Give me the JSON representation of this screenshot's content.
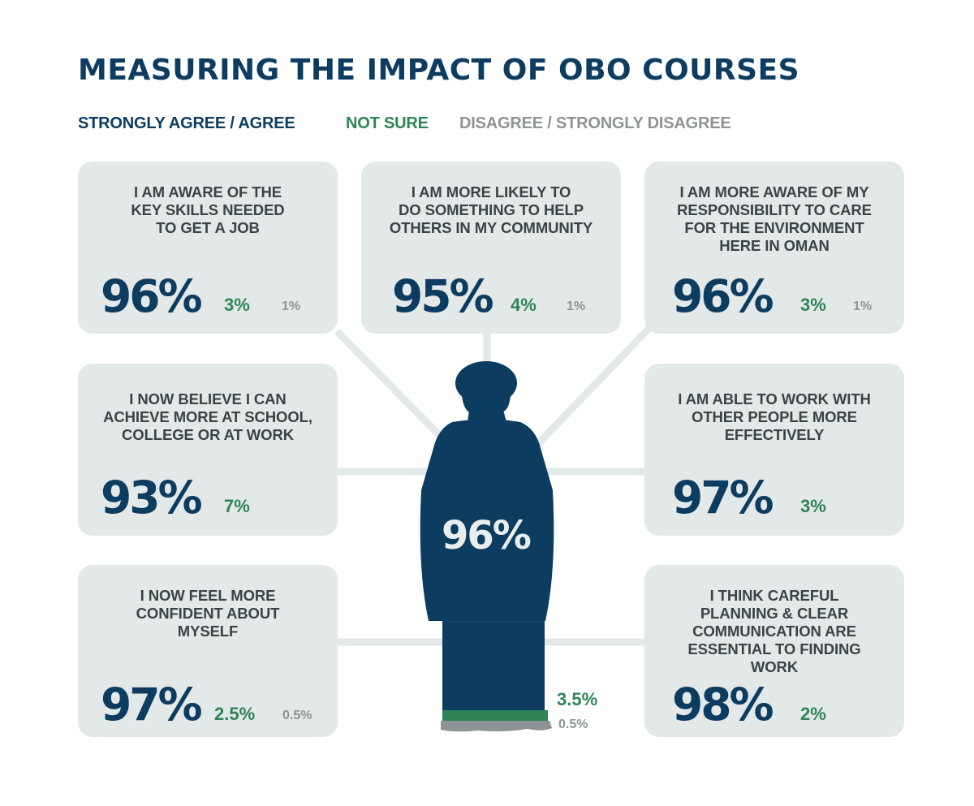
{
  "title": "MEASURING THE IMPACT OF OBO COURSES",
  "legend": {
    "agree": "STRONGLY AGREE / AGREE",
    "not_sure": "NOT SURE",
    "disagree": "DISAGREE / STRONGLY DISAGREE"
  },
  "colors": {
    "agree": "#0d3c61",
    "not_sure": "#2e8457",
    "disagree": "#8e9396",
    "card_background": "#e3e8e8"
  },
  "cards": [
    {
      "statement": "I AM AWARE OF THE\nKEY SKILLS NEEDED\nTO GET A JOB",
      "agree": "96%",
      "not_sure": "3%",
      "disagree": "1%"
    },
    {
      "statement": "I AM MORE LIKELY TO\nDO SOMETHING TO HELP\nOTHERS IN MY COMMUNITY",
      "agree": "95%",
      "not_sure": "4%",
      "disagree": "1%"
    },
    {
      "statement": "I AM MORE AWARE OF MY\nRESPONSIBILITY TO CARE\nFOR THE ENVIRONMENT\nHERE IN OMAN",
      "agree": "96%",
      "not_sure": "3%",
      "disagree": "1%"
    },
    {
      "statement": "I NOW BELIEVE I CAN\nACHIEVE MORE AT SCHOOL,\nCOLLEGE OR AT WORK",
      "agree": "93%",
      "not_sure": "7%",
      "disagree": ""
    },
    {
      "statement": "I AM ABLE TO WORK WITH\nOTHER PEOPLE MORE\nEFFECTIVELY",
      "agree": "97%",
      "not_sure": "3%",
      "disagree": ""
    },
    {
      "statement": "I NOW FEEL MORE\nCONFIDENT ABOUT\nMYSELF",
      "agree": "97%",
      "not_sure": "2.5%",
      "disagree": "0.5%"
    },
    {
      "statement": "I THINK CAREFUL\nPLANNING & CLEAR\nCOMMUNICATION ARE\nESSENTIAL TO FINDING\nWORK",
      "agree": "98%",
      "not_sure": "2%",
      "disagree": ""
    }
  ],
  "overall": {
    "agree": "96%",
    "not_sure": "3.5%",
    "disagree": "0.5%"
  },
  "icons": {
    "figure": "person-in-dishdasha-icon"
  }
}
